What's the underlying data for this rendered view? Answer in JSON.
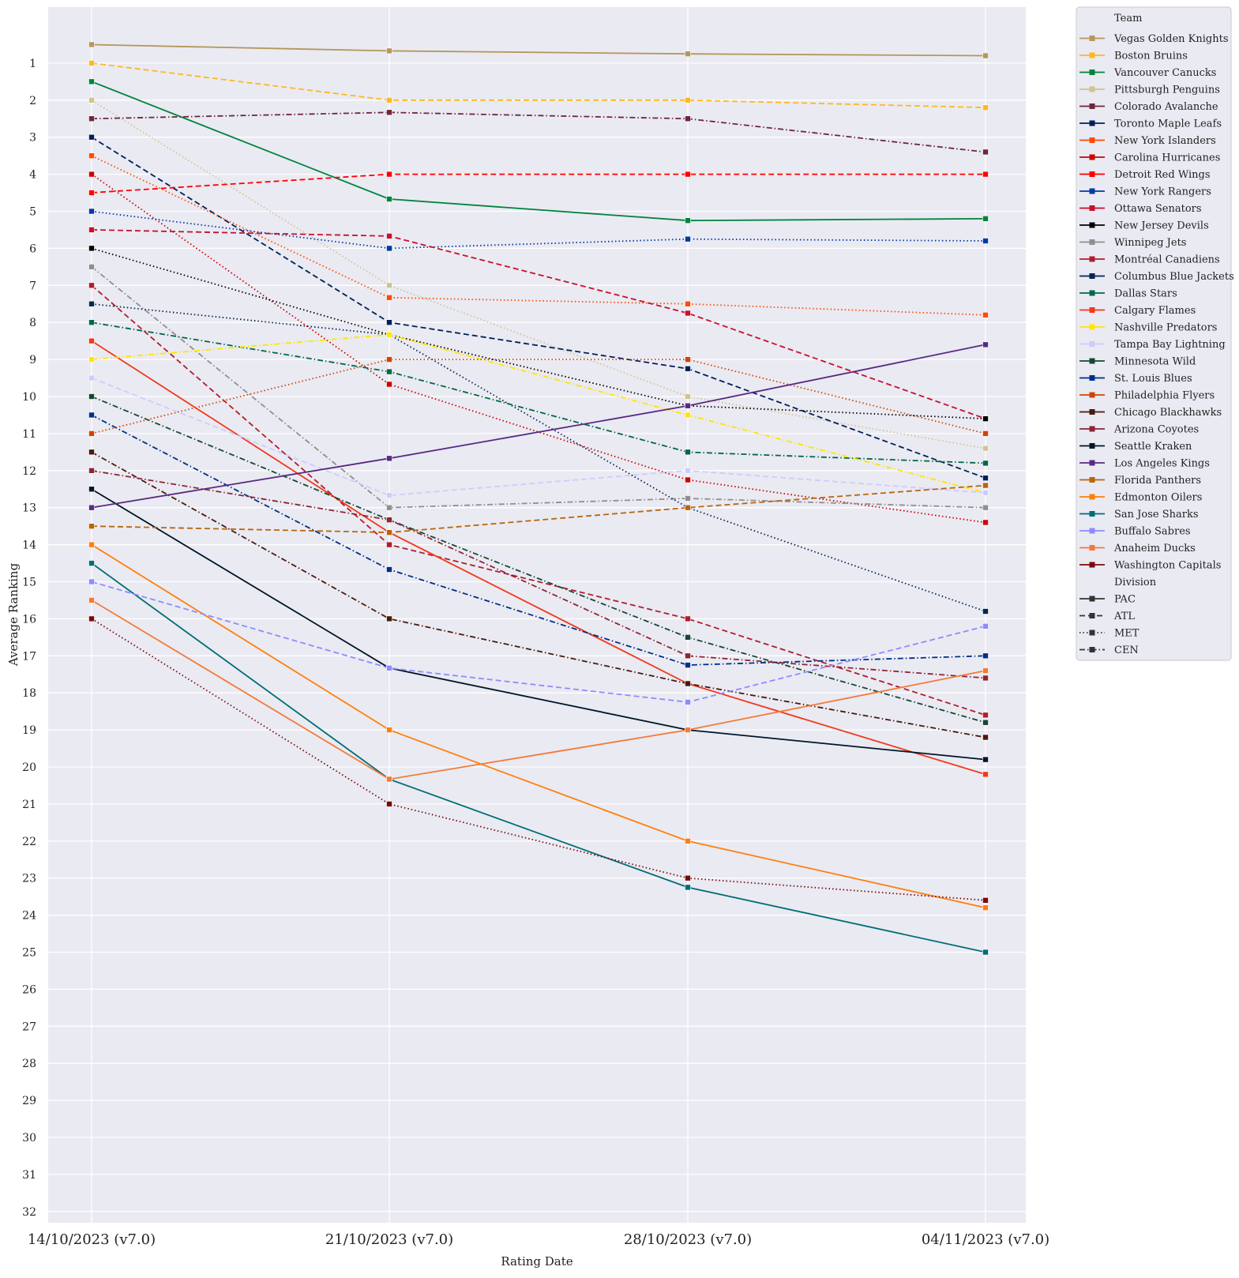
{
  "chart_data": {
    "type": "line",
    "xlabel": "Rating Date",
    "ylabel": "Average Ranking",
    "x": [
      "14/10/2023 (v7.0)",
      "21/10/2023 (v7.0)",
      "28/10/2023 (v7.0)",
      "04/11/2023 (v7.0)"
    ],
    "y_ticks": [
      1,
      2,
      3,
      4,
      5,
      6,
      7,
      8,
      9,
      10,
      11,
      12,
      13,
      14,
      15,
      16,
      17,
      18,
      19,
      20,
      21,
      22,
      23,
      24,
      25,
      26,
      27,
      28,
      29,
      30,
      31,
      32
    ],
    "ylim": [
      33,
      0
    ],
    "y_inverted": true,
    "grid": true,
    "legend_placement": "outside-top-right",
    "legend_team_title": "Team",
    "legend_division_title": "Division",
    "divisions": [
      {
        "name": "PAC",
        "dash": "solid"
      },
      {
        "name": "ATL",
        "dash": "dashed"
      },
      {
        "name": "MET",
        "dash": "dotted"
      },
      {
        "name": "CEN",
        "dash": "dashdot"
      }
    ],
    "series": [
      {
        "name": "Vegas Golden Knights",
        "division": "PAC",
        "color": "#B4975A",
        "values": [
          0.5,
          0.67,
          0.75,
          0.8
        ]
      },
      {
        "name": "Boston Bruins",
        "division": "ATL",
        "color": "#FFB81C",
        "values": [
          1.0,
          2.0,
          2.0,
          2.2
        ]
      },
      {
        "name": "Vancouver Canucks",
        "division": "PAC",
        "color": "#00843D",
        "values": [
          1.5,
          4.67,
          5.25,
          5.2
        ]
      },
      {
        "name": "Pittsburgh Penguins",
        "division": "MET",
        "color": "#CFC493",
        "values": [
          2.0,
          7.0,
          10.0,
          11.4
        ]
      },
      {
        "name": "Colorado Avalanche",
        "division": "CEN",
        "color": "#6F263D",
        "values": [
          2.5,
          2.33,
          2.5,
          3.4
        ]
      },
      {
        "name": "Toronto Maple Leafs",
        "division": "ATL",
        "color": "#00205B",
        "values": [
          3.0,
          8.0,
          9.25,
          12.2
        ]
      },
      {
        "name": "New York Islanders",
        "division": "MET",
        "color": "#FC4C02",
        "values": [
          3.5,
          7.33,
          7.5,
          7.8
        ]
      },
      {
        "name": "Carolina Hurricanes",
        "division": "MET",
        "color": "#CC0000",
        "values": [
          4.0,
          9.67,
          12.25,
          13.4
        ]
      },
      {
        "name": "Detroit Red Wings",
        "division": "ATL",
        "color": "#FF0000",
        "values": [
          4.5,
          4.0,
          4.0,
          4.0
        ]
      },
      {
        "name": "New York Rangers",
        "division": "MET",
        "color": "#0038A8",
        "values": [
          5.0,
          6.0,
          5.75,
          5.8
        ]
      },
      {
        "name": "Ottawa Senators",
        "division": "ATL",
        "color": "#C8102E",
        "values": [
          5.5,
          5.67,
          7.75,
          10.6
        ]
      },
      {
        "name": "New Jersey Devils",
        "division": "MET",
        "color": "#000000",
        "values": [
          6.0,
          8.33,
          10.25,
          10.6
        ]
      },
      {
        "name": "Winnipeg Jets",
        "division": "CEN",
        "color": "#8E9090",
        "values": [
          6.5,
          13.0,
          12.75,
          13.0
        ]
      },
      {
        "name": "Montréal Canadiens",
        "division": "ATL",
        "color": "#AF1E2D",
        "values": [
          7.0,
          14.0,
          16.0,
          18.6
        ]
      },
      {
        "name": "Columbus Blue Jackets",
        "division": "MET",
        "color": "#002654",
        "values": [
          7.5,
          8.33,
          13.0,
          15.8
        ]
      },
      {
        "name": "Dallas Stars",
        "division": "CEN",
        "color": "#006847",
        "values": [
          8.0,
          9.33,
          11.5,
          11.8
        ]
      },
      {
        "name": "Calgary Flames",
        "division": "PAC",
        "color": "#F1391B",
        "values": [
          8.5,
          13.67,
          17.75,
          20.2
        ]
      },
      {
        "name": "Nashville Predators",
        "division": "CEN",
        "color": "#FFE600",
        "values": [
          9.0,
          8.33,
          10.5,
          12.6
        ]
      },
      {
        "name": "Tampa Bay Lightning",
        "division": "ATL",
        "color": "#CDCCFF",
        "values": [
          9.5,
          12.67,
          12.0,
          12.6
        ]
      },
      {
        "name": "Minnesota Wild",
        "division": "CEN",
        "color": "#154734",
        "values": [
          10.0,
          13.33,
          16.5,
          18.8
        ]
      },
      {
        "name": "St. Louis Blues",
        "division": "CEN",
        "color": "#002F87",
        "values": [
          10.5,
          14.67,
          17.25,
          17.0
        ]
      },
      {
        "name": "Philadelphia Flyers",
        "division": "MET",
        "color": "#D24303",
        "values": [
          11.0,
          9.0,
          9.0,
          11.0
        ]
      },
      {
        "name": "Chicago Blackhawks",
        "division": "CEN",
        "color": "#4A1A0A",
        "values": [
          11.5,
          16.0,
          17.75,
          19.2
        ]
      },
      {
        "name": "Arizona Coyotes",
        "division": "CEN",
        "color": "#8C2633",
        "values": [
          12.0,
          13.33,
          17.0,
          17.6
        ]
      },
      {
        "name": "Seattle Kraken",
        "division": "PAC",
        "color": "#001628",
        "values": [
          12.5,
          17.33,
          19.0,
          19.8
        ]
      },
      {
        "name": "Los Angeles Kings",
        "division": "PAC",
        "color": "#572A84",
        "values": [
          13.0,
          11.67,
          10.25,
          8.6
        ]
      },
      {
        "name": "Florida Panthers",
        "division": "ATL",
        "color": "#B9650B",
        "values": [
          13.5,
          13.67,
          13.0,
          12.4
        ]
      },
      {
        "name": "Edmonton Oilers",
        "division": "PAC",
        "color": "#FF7F0E",
        "values": [
          14.0,
          19.0,
          22.0,
          23.8
        ]
      },
      {
        "name": "San Jose Sharks",
        "division": "PAC",
        "color": "#006D75",
        "values": [
          14.5,
          20.33,
          23.25,
          25.0
        ]
      },
      {
        "name": "Buffalo Sabres",
        "division": "ATL",
        "color": "#8C8CFF",
        "values": [
          15.0,
          17.33,
          18.25,
          16.2
        ]
      },
      {
        "name": "Anaheim Ducks",
        "division": "PAC",
        "color": "#F47A38",
        "values": [
          15.5,
          20.33,
          19.0,
          17.4
        ]
      },
      {
        "name": "Washington Capitals",
        "division": "MET",
        "color": "#7A0A0A",
        "values": [
          16.0,
          21.0,
          23.0,
          23.6
        ]
      }
    ]
  }
}
